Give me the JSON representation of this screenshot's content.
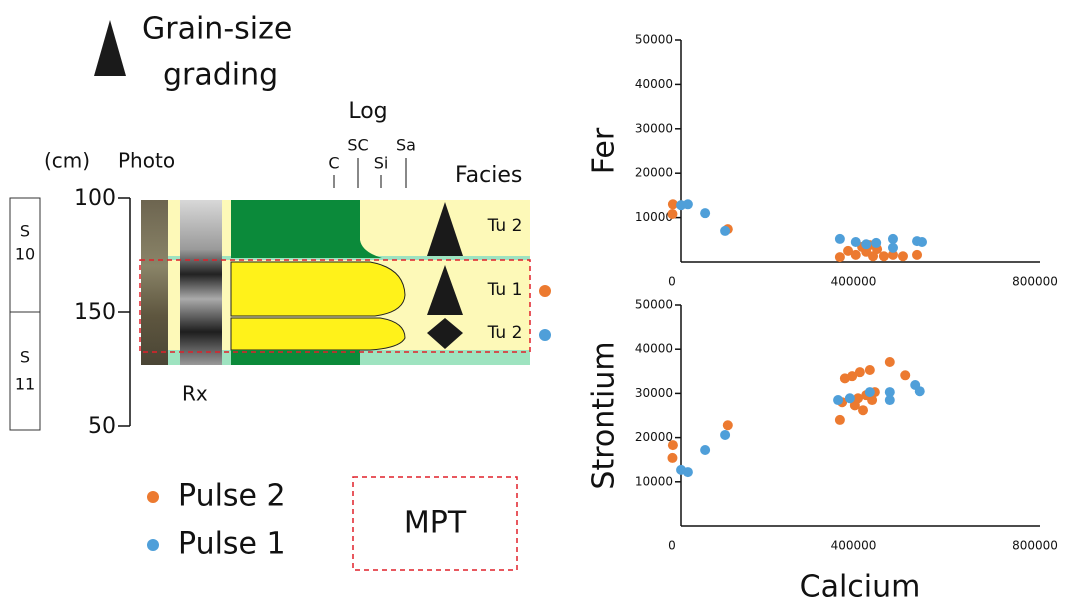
{
  "diagram": {
    "legend_title": [
      "Grain-size",
      "grading"
    ],
    "log_title": "Log",
    "log_scale": [
      "C",
      "SC",
      "Si",
      "Sa"
    ],
    "depth_unit": "(cm)",
    "photo_label": "Photo",
    "rx_label": "Rx",
    "facies_label": "Facies",
    "depth_ticks": [
      "100",
      "150",
      "50"
    ],
    "sections": [
      [
        "S",
        "10"
      ],
      [
        "S",
        "11"
      ]
    ],
    "facies": [
      "Tu 2",
      "Tu 1",
      "Tu 2"
    ],
    "box_label": "MPT"
  },
  "chart_data": [
    {
      "type": "scatter",
      "ylabel": "Fer",
      "xlim": [
        0,
        800000
      ],
      "xticks": [
        0,
        400000,
        800000
      ],
      "ylim": [
        0,
        50000
      ],
      "yticks": [
        10000,
        20000,
        30000,
        40000,
        50000
      ],
      "series": [
        {
          "name": "Pulse 2",
          "color": "#ec7a30",
          "x": [
            2000,
            1000,
            123000,
            370000,
            388000,
            405000,
            419000,
            428000,
            436000,
            443000,
            452000,
            467000,
            487000,
            509000,
            540000
          ],
          "values": [
            13000,
            10800,
            7400,
            1100,
            2500,
            1600,
            3400,
            2300,
            3800,
            1300,
            2900,
            1300,
            1600,
            1300,
            1600
          ]
        },
        {
          "name": "Pulse 1",
          "color": "#4f9fd9",
          "x": [
            20000,
            35000,
            73000,
            117000,
            370000,
            405000,
            428000,
            450000,
            487000,
            487000,
            540000,
            551000
          ],
          "values": [
            12800,
            13000,
            11000,
            7000,
            5200,
            4500,
            4000,
            4300,
            5200,
            3200,
            4700,
            4500
          ]
        }
      ]
    },
    {
      "type": "scatter",
      "ylabel": "Strontium",
      "xlabel": "Calcium",
      "xlim": [
        0,
        800000
      ],
      "xticks": [
        0,
        400000,
        800000
      ],
      "ylim": [
        0,
        50000
      ],
      "yticks": [
        10000,
        20000,
        30000,
        40000,
        50000
      ],
      "series": [
        {
          "color": "#ec7a30",
          "x": [
            2000,
            1000,
            123000,
            375000,
            381000,
            397000,
            403000,
            410000,
            414000,
            421000,
            428000,
            436000,
            441000,
            447000,
            480000,
            514000,
            370000
          ],
          "values": [
            18300,
            15400,
            22800,
            28000,
            33400,
            33900,
            27300,
            28900,
            34800,
            26200,
            29600,
            35300,
            28500,
            30300,
            37100,
            34100,
            24000
          ]
        },
        {
          "color": "#4f9fd9",
          "x": [
            20000,
            35000,
            73000,
            117000,
            366000,
            392000,
            436000,
            480000,
            480000,
            536000,
            546000
          ],
          "values": [
            12700,
            12200,
            17200,
            20600,
            28500,
            28900,
            30300,
            30300,
            28500,
            31900,
            30500
          ]
        }
      ]
    }
  ]
}
